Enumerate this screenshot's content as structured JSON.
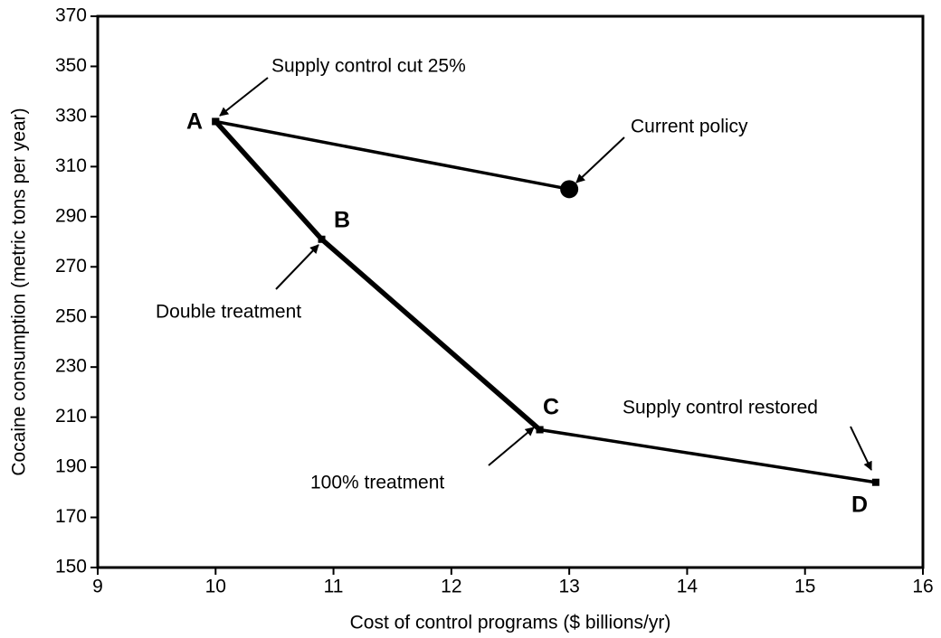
{
  "chart_data": {
    "type": "line",
    "xlabel": "Cost of control programs ($ billions/yr)",
    "ylabel": "Cocaine consumption (metric tons per year)",
    "xlim": [
      9,
      16
    ],
    "ylim": [
      150,
      370
    ],
    "xticks": [
      9,
      10,
      11,
      12,
      13,
      14,
      15,
      16
    ],
    "yticks": [
      150,
      170,
      190,
      210,
      230,
      250,
      270,
      290,
      310,
      330,
      350,
      370
    ],
    "color": "#000000",
    "series": [
      {
        "x": [
          10,
          13
        ],
        "values": [
          328,
          301
        ]
      },
      {
        "x": [
          10,
          10.9,
          12.75
        ],
        "values": [
          328,
          281,
          205
        ]
      },
      {
        "x": [
          12.75,
          15.6
        ],
        "values": [
          205,
          184
        ]
      }
    ],
    "current_policy": {
      "x": 13,
      "y": 301
    },
    "point_labels": [
      "A",
      "B",
      "C",
      "D"
    ],
    "annotations": [
      "Supply control cut 25%",
      "Current policy",
      "Double treatment",
      "100% treatment",
      "Supply control restored"
    ]
  }
}
